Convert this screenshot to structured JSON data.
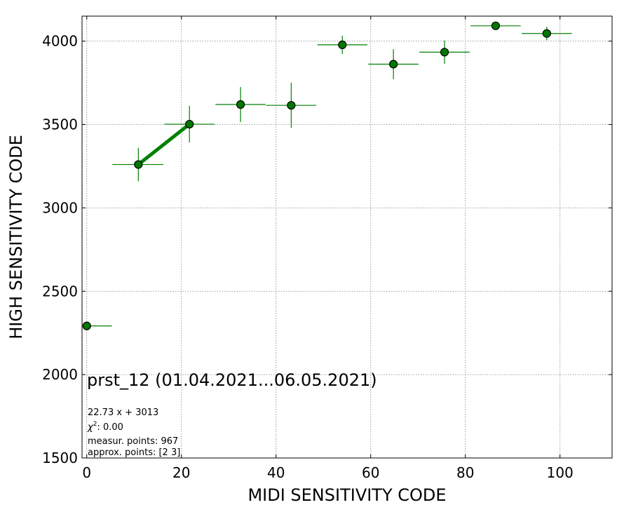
{
  "chart_data": {
    "type": "scatter",
    "title": "prst_12 (01.04.2021...06.05.2021)",
    "xlabel": "MIDI SENSITIVITY CODE",
    "ylabel": "HIGH SENSITIVITY CODE",
    "xlim": [
      -1,
      111
    ],
    "ylim": [
      1500,
      4150
    ],
    "xticks": [
      0,
      20,
      40,
      60,
      80,
      100
    ],
    "yticks": [
      1500,
      2000,
      2500,
      3000,
      3500,
      4000
    ],
    "grid": true,
    "colors": {
      "marker": "#007800",
      "errorbar": "#008000",
      "fit": "#008000",
      "grid": "#808080"
    },
    "points": [
      {
        "x": 0,
        "y": 2292,
        "xerr_left": 0,
        "xerr_right": 5.3,
        "yerr": 0
      },
      {
        "x": 10.9,
        "y": 3260,
        "xerr_left": 5.5,
        "xerr_right": 5.3,
        "yerr": 100
      },
      {
        "x": 21.7,
        "y": 3502,
        "xerr_left": 5.3,
        "xerr_right": 5.3,
        "yerr": 110
      },
      {
        "x": 32.5,
        "y": 3620,
        "xerr_left": 5.3,
        "xerr_right": 5.3,
        "yerr": 105
      },
      {
        "x": 43.2,
        "y": 3615,
        "xerr_left": 5.3,
        "xerr_right": 5.3,
        "yerr": 135
      },
      {
        "x": 54.0,
        "y": 3978,
        "xerr_left": 5.3,
        "xerr_right": 5.3,
        "yerr": 55
      },
      {
        "x": 64.8,
        "y": 3862,
        "xerr_left": 5.3,
        "xerr_right": 5.3,
        "yerr": 90
      },
      {
        "x": 75.6,
        "y": 3934,
        "xerr_left": 5.3,
        "xerr_right": 5.3,
        "yerr": 70
      },
      {
        "x": 86.4,
        "y": 4092,
        "xerr_left": 5.3,
        "xerr_right": 5.3,
        "yerr": 0
      },
      {
        "x": 97.2,
        "y": 4046,
        "xerr_left": 5.3,
        "xerr_right": 5.3,
        "yerr": 40
      }
    ],
    "fit_line": {
      "x": [
        10.9,
        21.7
      ],
      "y": [
        3260,
        3502
      ]
    },
    "annotations": [
      "22.73 x + 3013",
      "measur. points: 967",
      "approx. points: [2 3]"
    ],
    "chi2_label": "0.00"
  }
}
